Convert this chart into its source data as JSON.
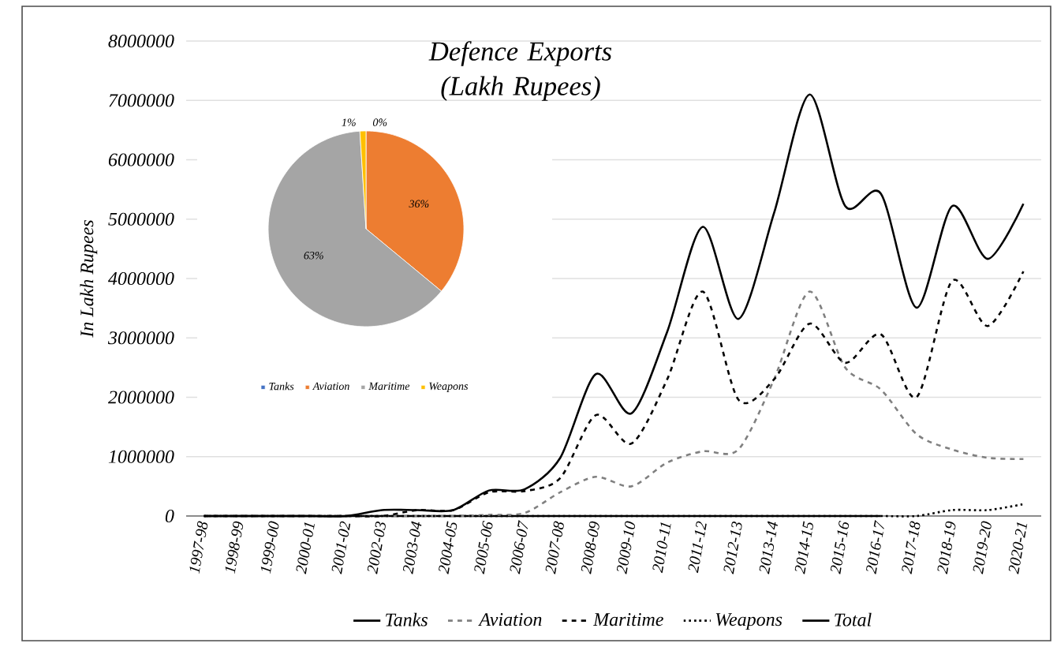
{
  "chart_data": [
    {
      "type": "line",
      "title": "Defence Exports (Lakh Rupees)",
      "ylabel": "In Lakh Rupees",
      "categories": [
        "1997-98",
        "1998-99",
        "1999-00",
        "2000-01",
        "2001-02",
        "2002-03",
        "2003-04",
        "2004-05",
        "2005-06",
        "2006-07",
        "2007-08",
        "2008-09",
        "2009-10",
        "2010-11",
        "2011-12",
        "2012-13",
        "2013-14",
        "2014-15",
        "2015-16",
        "2016-17",
        "2017-18",
        "2018-19",
        "2019-20",
        "2020-21"
      ],
      "series": [
        {
          "name": "Tanks",
          "color": "#000000",
          "line_style": "solid",
          "values": [
            0,
            0,
            0,
            0,
            0,
            0,
            0,
            0,
            0,
            0,
            0,
            0,
            0,
            0,
            0,
            0,
            0,
            0,
            0,
            0,
            null,
            null,
            null,
            null
          ]
        },
        {
          "name": "Aviation",
          "color": "#808080",
          "line_style": "dashed",
          "values": [
            0,
            0,
            0,
            0,
            0,
            0,
            0,
            0,
            20000,
            50000,
            400000,
            660000,
            500000,
            900000,
            1090000,
            1120000,
            2300000,
            3780000,
            2500000,
            2130000,
            1380000,
            1120000,
            980000,
            960000
          ]
        },
        {
          "name": "Maritime",
          "color": "#000000",
          "line_style": "dashed",
          "values": [
            0,
            0,
            0,
            0,
            0,
            0,
            100000,
            100000,
            400000,
            420000,
            640000,
            1700000,
            1220000,
            2300000,
            3780000,
            1960000,
            2300000,
            3240000,
            2580000,
            3060000,
            2000000,
            3960000,
            3200000,
            4120000
          ]
        },
        {
          "name": "Weapons",
          "color": "#000000",
          "line_style": "dotted",
          "values": [
            0,
            0,
            0,
            0,
            0,
            0,
            0,
            0,
            0,
            0,
            0,
            0,
            0,
            0,
            0,
            0,
            0,
            0,
            0,
            0,
            0,
            100000,
            100000,
            200000
          ]
        },
        {
          "name": "Total",
          "color": "#000000",
          "line_style": "solid",
          "values": [
            0,
            0,
            0,
            0,
            0,
            100000,
            100000,
            100000,
            430000,
            450000,
            980000,
            2390000,
            1730000,
            3100000,
            4870000,
            3320000,
            5100000,
            7100000,
            5220000,
            5430000,
            3510000,
            5220000,
            4330000,
            5260000
          ]
        }
      ],
      "ylim": [
        0,
        8000000
      ],
      "yticks": [
        0,
        1000000,
        2000000,
        3000000,
        4000000,
        5000000,
        6000000,
        7000000,
        8000000
      ],
      "grid": "y",
      "legend": "bottom"
    },
    {
      "type": "pie",
      "categories": [
        "Tanks",
        "Aviation",
        "Maritime",
        "Weapons"
      ],
      "values": [
        0,
        36,
        63,
        1
      ],
      "colors": [
        "#4472c4",
        "#ed7d31",
        "#a5a5a5",
        "#ffc000"
      ],
      "value_labels": [
        "0%",
        "36%",
        "63%",
        "1%"
      ],
      "legend": "bottom"
    }
  ]
}
